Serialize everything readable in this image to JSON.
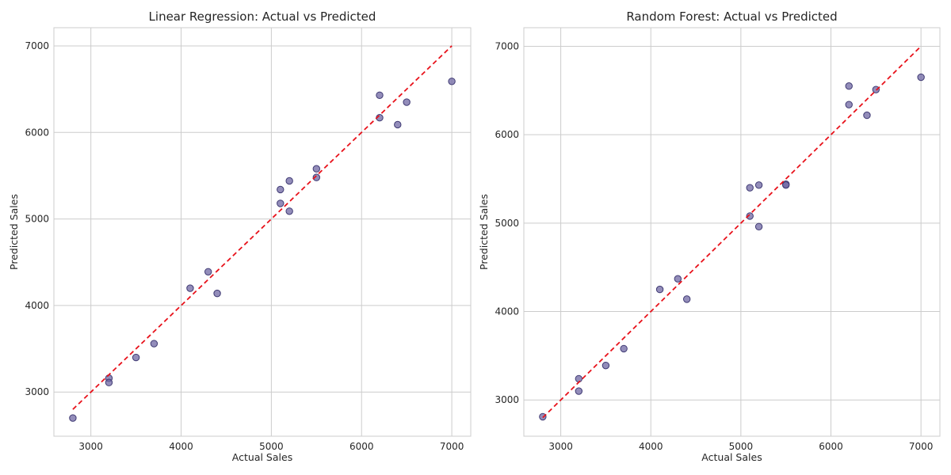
{
  "chart_data": [
    {
      "type": "scatter",
      "title": "Linear Regression: Actual vs Predicted",
      "xlabel": "Actual Sales",
      "ylabel": "Predicted Sales",
      "xlim": [
        2590,
        7210
      ],
      "ylim": [
        2490,
        7210
      ],
      "xticks": [
        3000,
        4000,
        5000,
        6000,
        7000
      ],
      "yticks": [
        3000,
        4000,
        5000,
        6000,
        7000
      ],
      "grid": true,
      "reference_line": {
        "from": [
          2800,
          2800
        ],
        "to": [
          7000,
          7000
        ],
        "style": "dashed",
        "color": "#e8121b"
      },
      "point_color": "#6f67a3",
      "points": [
        [
          2800,
          2700
        ],
        [
          3200,
          3160
        ],
        [
          3200,
          3110
        ],
        [
          3500,
          3400
        ],
        [
          3700,
          3560
        ],
        [
          4100,
          4200
        ],
        [
          4300,
          4390
        ],
        [
          4400,
          4140
        ],
        [
          5100,
          5340
        ],
        [
          5100,
          5180
        ],
        [
          5200,
          5440
        ],
        [
          5200,
          5090
        ],
        [
          5500,
          5580
        ],
        [
          5500,
          5480
        ],
        [
          6200,
          6430
        ],
        [
          6200,
          6170
        ],
        [
          6400,
          6090
        ],
        [
          6500,
          6350
        ],
        [
          7000,
          6590
        ]
      ]
    },
    {
      "type": "scatter",
      "title": "Random Forest: Actual vs Predicted",
      "xlabel": "Actual Sales",
      "ylabel": "Predicted Sales",
      "xlim": [
        2590,
        7210
      ],
      "ylim": [
        2590,
        7210
      ],
      "xticks": [
        3000,
        4000,
        5000,
        6000,
        7000
      ],
      "yticks": [
        3000,
        4000,
        5000,
        6000,
        7000
      ],
      "grid": true,
      "reference_line": {
        "from": [
          2800,
          2800
        ],
        "to": [
          7000,
          7000
        ],
        "style": "dashed",
        "color": "#e8121b"
      },
      "point_color": "#6f67a3",
      "points": [
        [
          2800,
          2810
        ],
        [
          3200,
          3240
        ],
        [
          3200,
          3100
        ],
        [
          3500,
          3390
        ],
        [
          3700,
          3580
        ],
        [
          4100,
          4250
        ],
        [
          4300,
          4370
        ],
        [
          4400,
          4140
        ],
        [
          5100,
          5400
        ],
        [
          5100,
          5080
        ],
        [
          5200,
          5430
        ],
        [
          5200,
          4960
        ],
        [
          5500,
          5440
        ],
        [
          5500,
          5430
        ],
        [
          6200,
          6550
        ],
        [
          6200,
          6340
        ],
        [
          6400,
          6220
        ],
        [
          6500,
          6510
        ],
        [
          7000,
          6650
        ]
      ]
    }
  ]
}
